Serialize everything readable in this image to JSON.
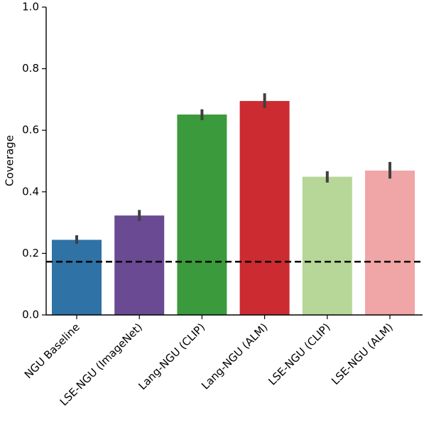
{
  "chart_data": {
    "type": "bar",
    "title": "",
    "xlabel": "",
    "ylabel": "Coverage",
    "ylim": [
      0,
      1.0
    ],
    "yticks": [
      0.0,
      0.2,
      0.4,
      0.6,
      0.8,
      1.0
    ],
    "ytick_labels": [
      "0.0",
      "0.2",
      "0.4",
      "0.6",
      "0.8",
      "1.0"
    ],
    "categories": [
      "NGU Baseline",
      "LSE-NGU (ImageNet)",
      "Lang-NGU (CLIP)",
      "Lang-NGU (ALM)",
      "LSE-NGU (CLIP)",
      "LSE-NGU (ALM)"
    ],
    "values": [
      0.244,
      0.323,
      0.651,
      0.695,
      0.449,
      0.469
    ],
    "error_low": [
      0.231,
      0.305,
      0.633,
      0.672,
      0.43,
      0.443
    ],
    "error_high": [
      0.259,
      0.341,
      0.668,
      0.72,
      0.467,
      0.497
    ],
    "colors": [
      "#2f72a6",
      "#6a4a92",
      "#3b9a3b",
      "#cc2b32",
      "#b6d797",
      "#f0a5a6"
    ],
    "error_color": "#404040",
    "reference_line": {
      "value": 0.173,
      "style": "dashed",
      "color": "#000000"
    },
    "grid": false,
    "legend": "none"
  }
}
